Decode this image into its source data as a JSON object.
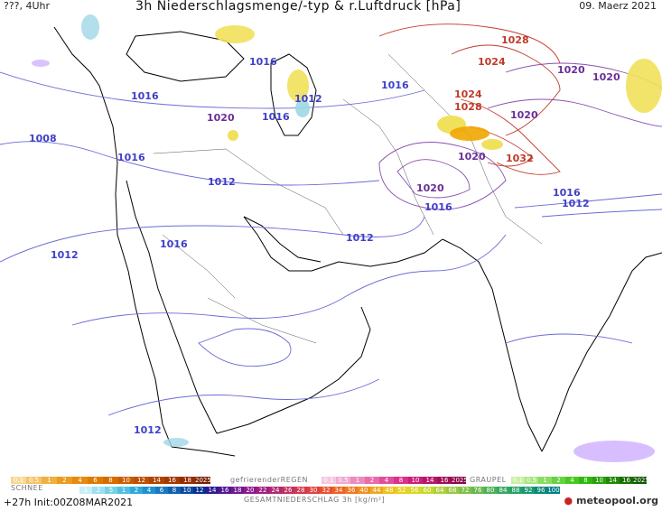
{
  "header": {
    "left": "???, 4Uhr",
    "title": "3h Niederschlagsmenge/-typ & r.Luftdruck [hPa]",
    "date": "09. Maerz 2021"
  },
  "isobar_labels_blue": [
    {
      "text": "1008"
    },
    {
      "text": "1016"
    },
    {
      "text": "1016"
    },
    {
      "text": "1016"
    },
    {
      "text": "1016"
    },
    {
      "text": "1016"
    },
    {
      "text": "1016"
    },
    {
      "text": "1012"
    },
    {
      "text": "1012"
    },
    {
      "text": "1012"
    },
    {
      "text": "1012"
    },
    {
      "text": "1016"
    },
    {
      "text": "1012"
    },
    {
      "text": "1016"
    },
    {
      "text": "1012"
    }
  ],
  "isobar_labels_purple": [
    {
      "text": "1020"
    },
    {
      "text": "1020"
    },
    {
      "text": "1020"
    },
    {
      "text": "1020"
    },
    {
      "text": "1020"
    },
    {
      "text": "1020"
    }
  ],
  "isobar_labels_red": [
    {
      "text": "1028"
    },
    {
      "text": "1024"
    },
    {
      "text": "1024"
    },
    {
      "text": "1028"
    },
    {
      "text": "1032"
    }
  ],
  "legend": {
    "snow_label": "SCHNEE",
    "snow_values": [
      "0.1",
      "0.5",
      "1",
      "2",
      "4",
      "6",
      "8",
      "10",
      "12",
      "14",
      "16",
      "18",
      "2025+"
    ],
    "freezing_rain_label": "gefrierenderREGEN",
    "freezing_rain_values": [
      "0.1",
      "0.5",
      "1",
      "2",
      "4",
      "8",
      "10",
      "14",
      "16",
      "2025+"
    ],
    "graupel_label": "GRAUPEL",
    "graupel_values": [
      "0.1",
      "0.5",
      "1",
      "2",
      "4",
      "8",
      "10",
      "14",
      "16",
      "2025+"
    ],
    "total_label": "GESAMTNIEDERSCHLAG 3h [kg/m²]",
    "total_values": [
      "1",
      "2",
      "5",
      "1",
      "2",
      "4",
      "6",
      "8",
      "10",
      "12",
      "14",
      "16",
      "18",
      "20",
      "22",
      "24",
      "26",
      "28",
      "30",
      "32",
      "34",
      "36",
      "40",
      "44",
      "48",
      "52",
      "56",
      "60",
      "64",
      "68",
      "72",
      "76",
      "80",
      "84",
      "88",
      "92",
      "96",
      "100"
    ]
  },
  "footer": {
    "run": "+27h  Init:00Z08MAR2021",
    "logo": "meteopool.org"
  },
  "colors": {
    "isobar_low": "#5555cc",
    "isobar_mid": "#7a3f9a",
    "isobar_high": "#c0392b",
    "precip_snow": "#d0b4ff",
    "precip_rain_light": "#f1e05a",
    "precip_rain_medium": "#f0a600"
  }
}
